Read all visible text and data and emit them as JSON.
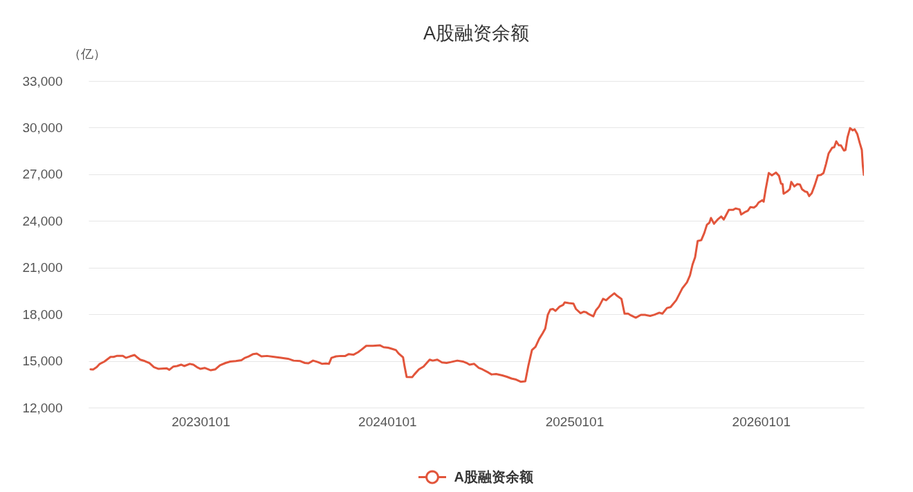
{
  "chart_data": {
    "type": "line",
    "title": "A股融资余额",
    "ylabel": "（亿）",
    "x": [
      "2022-05-31",
      "2022-06-05",
      "2022-06-12",
      "2022-06-18",
      "2022-06-27",
      "2022-07-09",
      "2022-07-15",
      "2022-07-22",
      "2022-08-02",
      "2022-08-08",
      "2022-08-16",
      "2022-08-25",
      "2022-08-29",
      "2022-09-05",
      "2022-09-14",
      "2022-09-23",
      "2022-10-02",
      "2022-10-11",
      "2022-10-27",
      "2022-11-01",
      "2022-11-09",
      "2022-11-16",
      "2022-11-24",
      "2022-11-30",
      "2022-12-11",
      "2022-12-18",
      "2022-12-25",
      "2023-01-01",
      "2023-01-09",
      "2023-01-21",
      "2023-01-30",
      "2023-02-08",
      "2023-02-19",
      "2023-02-28",
      "2023-03-11",
      "2023-03-22",
      "2023-03-29",
      "2023-04-05",
      "2023-04-14",
      "2023-04-21",
      "2023-04-30",
      "2023-05-11",
      "2023-05-25",
      "2023-06-07",
      "2023-06-21",
      "2023-07-02",
      "2023-07-15",
      "2023-07-24",
      "2023-07-31",
      "2023-08-09",
      "2023-08-18",
      "2023-08-27",
      "2023-09-03",
      "2023-09-09",
      "2023-09-14",
      "2023-09-23",
      "2023-10-02",
      "2023-10-11",
      "2023-10-18",
      "2023-10-27",
      "2023-11-05",
      "2023-11-12",
      "2023-11-21",
      "2023-12-04",
      "2023-12-18",
      "2023-12-25",
      "2024-01-03",
      "2024-01-12",
      "2024-01-18",
      "2024-01-23",
      "2024-02-01",
      "2024-02-04",
      "2024-02-08",
      "2024-02-19",
      "2024-02-23",
      "2024-03-03",
      "2024-03-12",
      "2024-03-24",
      "2024-03-30",
      "2024-04-08",
      "2024-04-17",
      "2024-04-26",
      "2024-05-05",
      "2024-05-17",
      "2024-05-28",
      "2024-06-06",
      "2024-06-10",
      "2024-06-19",
      "2024-06-28",
      "2024-07-05",
      "2024-07-17",
      "2024-07-23",
      "2024-08-01",
      "2024-08-13",
      "2024-08-22",
      "2024-08-31",
      "2024-09-09",
      "2024-09-18",
      "2024-09-27",
      "2024-10-03",
      "2024-10-10",
      "2024-10-17",
      "2024-10-24",
      "2024-10-31",
      "2024-11-05",
      "2024-11-10",
      "2024-11-15",
      "2024-11-20",
      "2024-11-25",
      "2024-12-03",
      "2024-12-10",
      "2024-12-13",
      "2024-12-21",
      "2024-12-30",
      "2025-01-04",
      "2025-01-13",
      "2025-01-19",
      "2025-01-24",
      "2025-01-29",
      "2025-02-07",
      "2025-02-12",
      "2025-02-18",
      "2025-02-26",
      "2025-03-04",
      "2025-03-11",
      "2025-03-20",
      "2025-03-26",
      "2025-04-03",
      "2025-04-09",
      "2025-04-16",
      "2025-04-22",
      "2025-05-01",
      "2025-05-11",
      "2025-05-19",
      "2025-05-29",
      "2025-06-07",
      "2025-06-16",
      "2025-06-22",
      "2025-07-01",
      "2025-07-08",
      "2025-07-19",
      "2025-07-31",
      "2025-08-09",
      "2025-08-15",
      "2025-08-20",
      "2025-08-25",
      "2025-08-30",
      "2025-09-06",
      "2025-09-12",
      "2025-09-17",
      "2025-09-22",
      "2025-09-25",
      "2025-10-01",
      "2025-10-09",
      "2025-10-15",
      "2025-10-20",
      "2025-10-30",
      "2025-11-07",
      "2025-11-12",
      "2025-11-20",
      "2025-11-23",
      "2025-11-30",
      "2025-12-06",
      "2025-12-11",
      "2025-12-18",
      "2025-12-23",
      "2025-12-27",
      "2026-01-03",
      "2026-01-06",
      "2026-01-10",
      "2026-01-16",
      "2026-01-22",
      "2026-01-30",
      "2026-02-05",
      "2026-02-09",
      "2026-02-12",
      "2026-02-14",
      "2026-02-21",
      "2026-02-26",
      "2026-03-01",
      "2026-03-07",
      "2026-03-13",
      "2026-03-18",
      "2026-03-22",
      "2026-03-28",
      "2026-04-01",
      "2026-04-05",
      "2026-04-10",
      "2026-04-16",
      "2026-04-22",
      "2026-04-28",
      "2026-05-03",
      "2026-05-08",
      "2026-05-13",
      "2026-05-20",
      "2026-05-24",
      "2026-05-28",
      "2026-06-02",
      "2026-06-06",
      "2026-06-12",
      "2026-06-15",
      "2026-06-19",
      "2026-06-24",
      "2026-06-29",
      "2026-07-03",
      "2026-07-08",
      "2026-07-13",
      "2026-07-17",
      "2026-07-19",
      "2026-07-21"
    ],
    "series": [
      {
        "name": "A股融资余额",
        "color": "#e2553b",
        "values": [
          14460,
          14450,
          14600,
          14810,
          14960,
          15260,
          15260,
          15330,
          15330,
          15200,
          15290,
          15380,
          15260,
          15080,
          14990,
          14860,
          14600,
          14490,
          14520,
          14430,
          14640,
          14670,
          14760,
          14670,
          14810,
          14760,
          14600,
          14490,
          14550,
          14400,
          14460,
          14720,
          14870,
          14960,
          14990,
          15050,
          15200,
          15290,
          15440,
          15470,
          15290,
          15320,
          15260,
          15200,
          15140,
          15020,
          14990,
          14870,
          14850,
          15020,
          14930,
          14810,
          14840,
          14810,
          15200,
          15290,
          15320,
          15320,
          15440,
          15400,
          15560,
          15730,
          15970,
          15970,
          16000,
          15880,
          15850,
          15760,
          15700,
          15490,
          15230,
          14640,
          13970,
          13960,
          14130,
          14460,
          14640,
          15080,
          15020,
          15080,
          14900,
          14870,
          14930,
          15020,
          14960,
          14840,
          14760,
          14810,
          14550,
          14460,
          14250,
          14130,
          14160,
          14070,
          13980,
          13870,
          13800,
          13660,
          13690,
          14700,
          15700,
          15910,
          16410,
          16780,
          17080,
          17970,
          18310,
          18340,
          18220,
          18490,
          18600,
          18760,
          18720,
          18690,
          18340,
          18070,
          18160,
          18130,
          18010,
          17870,
          18250,
          18490,
          18990,
          18900,
          19110,
          19350,
          19170,
          18990,
          18040,
          18040,
          17920,
          17780,
          17960,
          17960,
          17890,
          17980,
          18100,
          18040,
          18400,
          18460,
          18900,
          19670,
          20050,
          20500,
          21200,
          21670,
          22710,
          22760,
          23230,
          23750,
          23890,
          24190,
          23820,
          24120,
          24290,
          24090,
          24710,
          24710,
          24800,
          24740,
          24410,
          24560,
          24650,
          24890,
          24860,
          24980,
          25180,
          25330,
          25240,
          26040,
          27080,
          26930,
          27110,
          26900,
          26400,
          26370,
          25750,
          25890,
          26040,
          26510,
          26220,
          26370,
          26340,
          26040,
          25890,
          25860,
          25600,
          25780,
          26310,
          26930,
          26960,
          27080,
          27670,
          28340,
          28710,
          28740,
          29120,
          28860,
          28860,
          28530,
          28560,
          29380,
          29970,
          29820,
          29890,
          29600,
          29000,
          28560,
          27520,
          26960
        ]
      }
    ],
    "xlim": [
      "2022-05-27",
      "2026-07-21"
    ],
    "xticks": [
      {
        "value": "2023-01-01",
        "label": "20230101"
      },
      {
        "value": "2024-01-01",
        "label": "20240101"
      },
      {
        "value": "2025-01-01",
        "label": "20250101"
      },
      {
        "value": "2026-01-01",
        "label": "20260101"
      }
    ],
    "ylim": [
      12000,
      33000
    ],
    "yticks": [
      {
        "value": 12000,
        "label": "12,000"
      },
      {
        "value": 15000,
        "label": "15,000"
      },
      {
        "value": 18000,
        "label": "18,000"
      },
      {
        "value": 21000,
        "label": "21,000"
      },
      {
        "value": 24000,
        "label": "24,000"
      },
      {
        "value": 27000,
        "label": "27,000"
      },
      {
        "value": 30000,
        "label": "30,000"
      },
      {
        "value": 33000,
        "label": "33,000"
      }
    ],
    "grid": "y",
    "legend": "bottom"
  }
}
